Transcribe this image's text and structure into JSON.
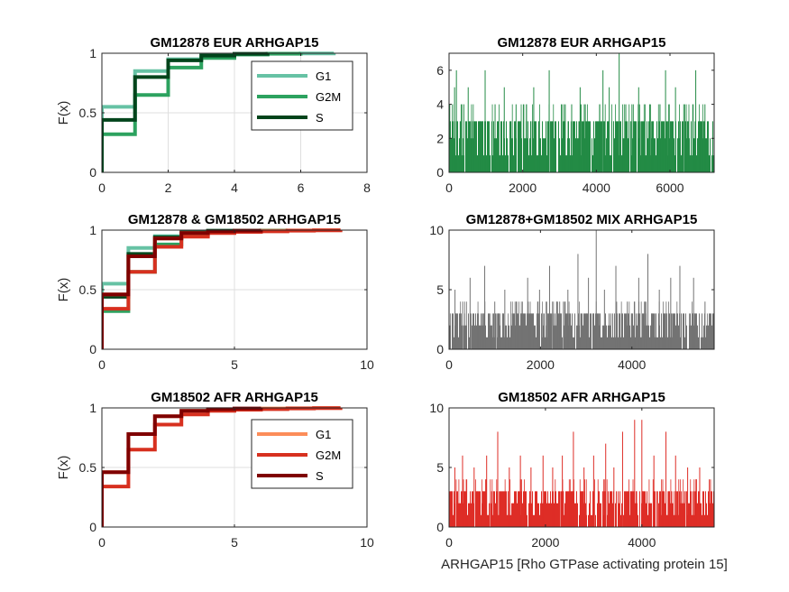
{
  "chart_data": [
    {
      "panel": "ecdf",
      "type": "line",
      "title": "GM12878 EUR ARHGAP15",
      "ylabel": "F(x)",
      "xlim": [
        0,
        8
      ],
      "ylim": [
        0,
        1
      ],
      "xticks": [
        0,
        2,
        4,
        6,
        8
      ],
      "yticks": [
        0,
        0.5,
        1
      ],
      "yticklabels": [
        "0",
        "0.5",
        "1"
      ],
      "grid": true,
      "legend": "top-right",
      "series": [
        {
          "name": "G1",
          "color": "#66c2a4",
          "x": [
            0,
            1,
            2,
            3,
            4,
            5,
            6,
            7
          ],
          "y": [
            0.55,
            0.85,
            0.95,
            0.98,
            0.99,
            0.995,
            0.998,
            1.0
          ]
        },
        {
          "name": "G2M",
          "color": "#2ca25f",
          "x": [
            0,
            1,
            2,
            3,
            4,
            5,
            6
          ],
          "y": [
            0.32,
            0.65,
            0.88,
            0.96,
            0.99,
            0.996,
            1.0
          ]
        },
        {
          "name": "S",
          "color": "#00441b",
          "x": [
            0,
            1,
            2,
            3,
            4,
            5
          ],
          "y": [
            0.44,
            0.8,
            0.94,
            0.98,
            0.995,
            1.0
          ]
        }
      ]
    },
    {
      "panel": "bars",
      "type": "bar",
      "title": "GM12878 EUR ARHGAP15",
      "color": "#238b45",
      "xlim": [
        0,
        7200
      ],
      "ylim": [
        0,
        7
      ],
      "xticks": [
        0,
        2000,
        4000,
        6000
      ],
      "yticks": [
        0,
        2,
        4,
        6
      ],
      "n_cells": 7200,
      "spikes": [
        {
          "x": 95,
          "y": 4
        },
        {
          "x": 150,
          "y": 5
        },
        {
          "x": 200,
          "y": 6
        },
        {
          "x": 330,
          "y": 4
        },
        {
          "x": 520,
          "y": 5
        },
        {
          "x": 980,
          "y": 6
        },
        {
          "x": 1250,
          "y": 4
        },
        {
          "x": 1500,
          "y": 5
        },
        {
          "x": 1820,
          "y": 4
        },
        {
          "x": 2100,
          "y": 4
        },
        {
          "x": 2300,
          "y": 5
        },
        {
          "x": 2720,
          "y": 6
        },
        {
          "x": 3050,
          "y": 4
        },
        {
          "x": 3330,
          "y": 4
        },
        {
          "x": 3560,
          "y": 5
        },
        {
          "x": 3700,
          "y": 4
        },
        {
          "x": 4180,
          "y": 6
        },
        {
          "x": 4350,
          "y": 5
        },
        {
          "x": 4620,
          "y": 7
        },
        {
          "x": 4800,
          "y": 4
        },
        {
          "x": 5150,
          "y": 5
        },
        {
          "x": 5450,
          "y": 4
        },
        {
          "x": 5880,
          "y": 6
        },
        {
          "x": 6150,
          "y": 5
        },
        {
          "x": 6400,
          "y": 4
        },
        {
          "x": 6700,
          "y": 6
        },
        {
          "x": 6950,
          "y": 4
        }
      ]
    },
    {
      "panel": "ecdf",
      "type": "line",
      "title": "GM12878 & GM18502 ARHGAP15",
      "ylabel": "F(x)",
      "xlim": [
        0,
        10
      ],
      "ylim": [
        0,
        1
      ],
      "xticks": [
        0,
        5,
        10
      ],
      "yticks": [
        0,
        0.5,
        1
      ],
      "yticklabels": [
        "0",
        "0.5",
        "1"
      ],
      "grid": true,
      "legend": "none",
      "series": [
        {
          "name": "",
          "color": "#66c2a4",
          "x": [
            0,
            1,
            2,
            3,
            4,
            5,
            6,
            7
          ],
          "y": [
            0.55,
            0.85,
            0.95,
            0.98,
            0.99,
            0.995,
            0.998,
            1.0
          ]
        },
        {
          "name": "",
          "color": "#2ca25f",
          "x": [
            0,
            1,
            2,
            3,
            4,
            5,
            6
          ],
          "y": [
            0.32,
            0.65,
            0.88,
            0.96,
            0.99,
            0.996,
            1.0
          ]
        },
        {
          "name": "",
          "color": "#00441b",
          "x": [
            0,
            1,
            2,
            3,
            4,
            5
          ],
          "y": [
            0.44,
            0.8,
            0.94,
            0.98,
            0.995,
            1.0
          ]
        },
        {
          "name": "",
          "color": "#fc8d59",
          "x": [
            0,
            1,
            2,
            3,
            4,
            5,
            6,
            7,
            8,
            9
          ],
          "y": [
            0.46,
            0.78,
            0.93,
            0.975,
            0.985,
            0.99,
            0.995,
            0.997,
            0.999,
            1.0
          ]
        },
        {
          "name": "",
          "color": "#d7301f",
          "x": [
            0,
            1,
            2,
            3,
            4,
            5,
            6,
            7,
            8,
            9
          ],
          "y": [
            0.34,
            0.65,
            0.86,
            0.945,
            0.975,
            0.985,
            0.99,
            0.995,
            0.998,
            1.0
          ]
        },
        {
          "name": "",
          "color": "#7f0000",
          "x": [
            0,
            1,
            2,
            3,
            4,
            5,
            6
          ],
          "y": [
            0.46,
            0.78,
            0.93,
            0.975,
            0.99,
            0.995,
            1.0
          ]
        }
      ]
    },
    {
      "panel": "bars",
      "type": "bar",
      "title": "GM12878+GM18502 MIX ARHGAP15",
      "color": "#737373",
      "xlim": [
        0,
        5800
      ],
      "ylim": [
        0,
        10
      ],
      "xticks": [
        0,
        2000,
        4000
      ],
      "yticks": [
        0,
        5,
        10
      ],
      "n_cells": 5800,
      "spikes": [
        {
          "x": 130,
          "y": 5
        },
        {
          "x": 300,
          "y": 4
        },
        {
          "x": 460,
          "y": 6
        },
        {
          "x": 780,
          "y": 7
        },
        {
          "x": 1000,
          "y": 4
        },
        {
          "x": 1220,
          "y": 5
        },
        {
          "x": 1480,
          "y": 4
        },
        {
          "x": 1720,
          "y": 6
        },
        {
          "x": 1980,
          "y": 5
        },
        {
          "x": 2200,
          "y": 7
        },
        {
          "x": 2420,
          "y": 4
        },
        {
          "x": 2600,
          "y": 5
        },
        {
          "x": 2820,
          "y": 8
        },
        {
          "x": 3050,
          "y": 6
        },
        {
          "x": 3220,
          "y": 10
        },
        {
          "x": 3400,
          "y": 5
        },
        {
          "x": 3650,
          "y": 7
        },
        {
          "x": 3900,
          "y": 4
        },
        {
          "x": 4150,
          "y": 6
        },
        {
          "x": 4350,
          "y": 8
        },
        {
          "x": 4600,
          "y": 5
        },
        {
          "x": 4850,
          "y": 6
        },
        {
          "x": 5050,
          "y": 7
        },
        {
          "x": 5350,
          "y": 6
        },
        {
          "x": 5600,
          "y": 4
        }
      ]
    },
    {
      "panel": "ecdf",
      "type": "line",
      "title": "GM18502 AFR ARHGAP15",
      "ylabel": "F(x)",
      "xlim": [
        0,
        10
      ],
      "ylim": [
        0,
        1
      ],
      "xticks": [
        0,
        5,
        10
      ],
      "yticks": [
        0,
        0.5,
        1
      ],
      "yticklabels": [
        "0",
        "0.5",
        "1"
      ],
      "grid": true,
      "legend": "top-right",
      "series": [
        {
          "name": "G1",
          "color": "#fc8d59",
          "x": [
            0,
            1,
            2,
            3,
            4,
            5,
            6,
            7,
            8,
            9
          ],
          "y": [
            0.46,
            0.78,
            0.93,
            0.975,
            0.985,
            0.99,
            0.995,
            0.997,
            0.999,
            1.0
          ]
        },
        {
          "name": "G2M",
          "color": "#d7301f",
          "x": [
            0,
            1,
            2,
            3,
            4,
            5,
            6,
            7,
            8,
            9
          ],
          "y": [
            0.34,
            0.65,
            0.86,
            0.945,
            0.975,
            0.985,
            0.99,
            0.995,
            0.998,
            1.0
          ]
        },
        {
          "name": "S",
          "color": "#7f0000",
          "x": [
            0,
            1,
            2,
            3,
            4,
            5,
            6
          ],
          "y": [
            0.46,
            0.78,
            0.93,
            0.975,
            0.99,
            0.995,
            1.0
          ]
        }
      ]
    },
    {
      "panel": "bars",
      "type": "bar",
      "title": "GM18502 AFR ARHGAP15",
      "xlabel": "ARHGAP15 [Rho GTPase activating protein 15]",
      "color": "#de2d26",
      "xlim": [
        0,
        5500
      ],
      "ylim": [
        0,
        10
      ],
      "xticks": [
        0,
        2000,
        4000
      ],
      "yticks": [
        0,
        5,
        10
      ],
      "n_cells": 5500,
      "spikes": [
        {
          "x": 120,
          "y": 5
        },
        {
          "x": 280,
          "y": 6
        },
        {
          "x": 520,
          "y": 5
        },
        {
          "x": 780,
          "y": 6
        },
        {
          "x": 1010,
          "y": 8
        },
        {
          "x": 1250,
          "y": 5
        },
        {
          "x": 1480,
          "y": 6
        },
        {
          "x": 1700,
          "y": 5
        },
        {
          "x": 1950,
          "y": 6
        },
        {
          "x": 2150,
          "y": 5
        },
        {
          "x": 2350,
          "y": 6
        },
        {
          "x": 2580,
          "y": 8
        },
        {
          "x": 2800,
          "y": 5
        },
        {
          "x": 3000,
          "y": 6
        },
        {
          "x": 3250,
          "y": 7
        },
        {
          "x": 3420,
          "y": 5
        },
        {
          "x": 3600,
          "y": 8
        },
        {
          "x": 3850,
          "y": 9
        },
        {
          "x": 4000,
          "y": 9
        },
        {
          "x": 4250,
          "y": 6
        },
        {
          "x": 4500,
          "y": 8
        },
        {
          "x": 4700,
          "y": 6
        },
        {
          "x": 4950,
          "y": 5
        },
        {
          "x": 5200,
          "y": 5
        },
        {
          "x": 5400,
          "y": 4
        }
      ]
    }
  ]
}
